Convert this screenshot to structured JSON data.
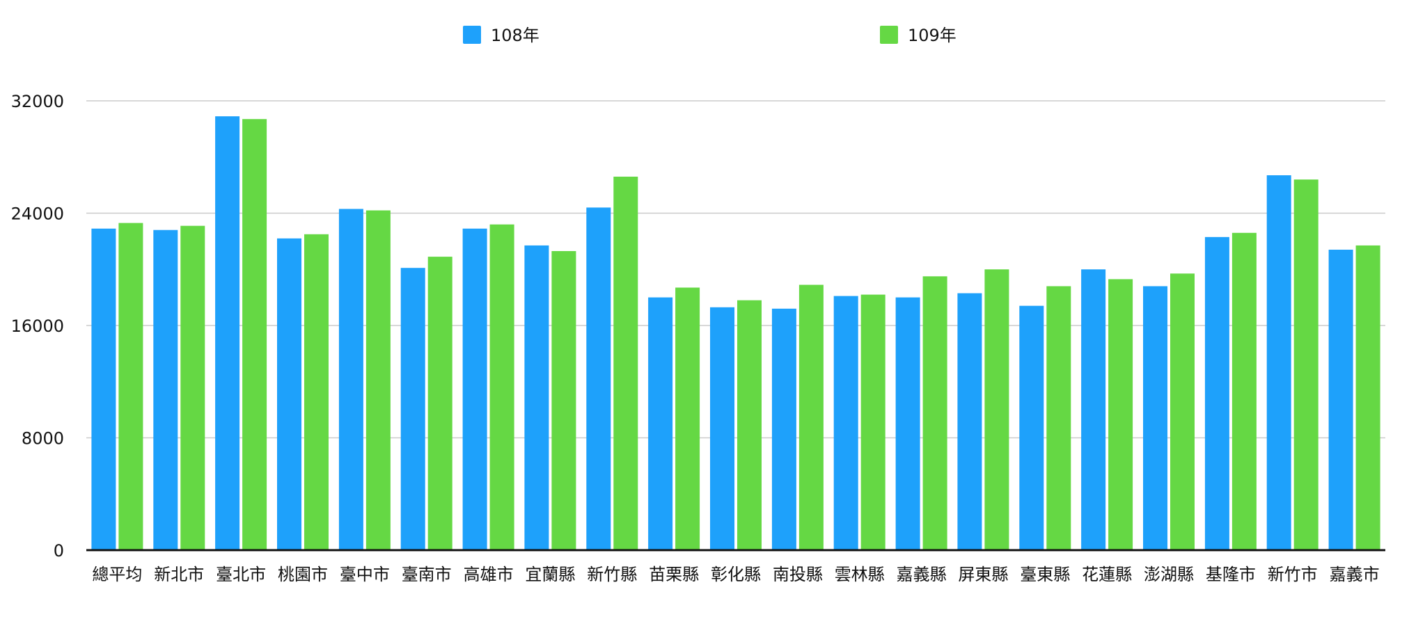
{
  "chart_data": {
    "type": "bar",
    "title": "",
    "xlabel": "",
    "ylabel": "",
    "ylim": [
      0,
      32000
    ],
    "yticks": [
      0,
      8000,
      16000,
      24000,
      32000
    ],
    "grid": true,
    "legend_position": "top",
    "categories": [
      "總平均",
      "新北市",
      "臺北市",
      "桃園市",
      "臺中市",
      "臺南市",
      "高雄市",
      "宜蘭縣",
      "新竹縣",
      "苗栗縣",
      "彰化縣",
      "南投縣",
      "雲林縣",
      "嘉義縣",
      "屏東縣",
      "臺東縣",
      "花蓮縣",
      "澎湖縣",
      "基隆市",
      "新竹市",
      "嘉義市"
    ],
    "series": [
      {
        "name": "108年",
        "color": "#1EA1FB",
        "values": [
          22900,
          22800,
          30900,
          22200,
          24300,
          20100,
          22900,
          21700,
          24400,
          18000,
          17300,
          17200,
          18100,
          18000,
          18300,
          17400,
          20000,
          18800,
          22300,
          26700,
          21400
        ]
      },
      {
        "name": "109年",
        "color": "#65D844",
        "values": [
          23300,
          23100,
          30700,
          22500,
          24200,
          20900,
          23200,
          21300,
          26600,
          18700,
          17800,
          18900,
          18200,
          19500,
          20000,
          18800,
          19300,
          19700,
          22600,
          26400,
          21700
        ]
      }
    ]
  }
}
